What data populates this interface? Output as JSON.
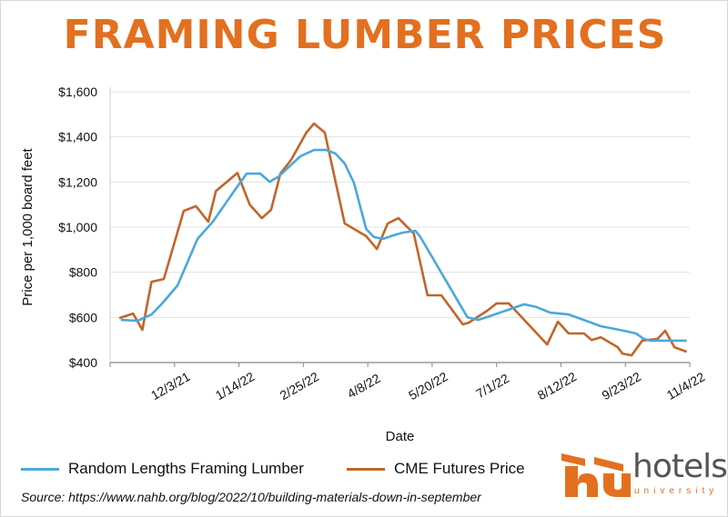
{
  "chart_data": {
    "type": "line",
    "title": "FRAMING LUMBER PRICES",
    "xlabel": "Date",
    "ylabel": "Price per 1,000 board feet",
    "x_unit": "days since 10/22/21",
    "xlim": [
      0,
      378
    ],
    "ylim": [
      400,
      1600
    ],
    "yticks": [
      400,
      600,
      800,
      1000,
      1200,
      1400,
      1600
    ],
    "ytick_labels": [
      "$400",
      "$600",
      "$800",
      "$1,000",
      "$1,200",
      "$1,400",
      "$1,600"
    ],
    "xticks": [
      42,
      84,
      126,
      168,
      210,
      252,
      294,
      336,
      378
    ],
    "xtick_labels": [
      "12/3/21",
      "1/14/22",
      "2/25/22",
      "4/8/22",
      "5/20/22",
      "7/1/22",
      "8/12/22",
      "9/23/22",
      "11/4/22"
    ],
    "grid": "horizontal",
    "legend": "bottom",
    "series": [
      {
        "name": "Random Lengths Framing Lumber",
        "color": "#4aa8dc",
        "x": [
          7,
          18,
          27,
          34,
          44,
          57,
          67,
          81,
          89,
          98,
          104,
          110,
          124,
          133,
          141,
          147,
          153,
          159,
          167,
          172,
          178,
          185,
          191,
          199,
          202,
          233,
          240,
          249,
          270,
          278,
          287,
          299,
          320,
          335,
          343,
          348,
          352,
          376
        ],
        "y": [
          589,
          585,
          613,
          662,
          742,
          948,
          1024,
          1161,
          1237,
          1237,
          1201,
          1225,
          1314,
          1342,
          1342,
          1326,
          1282,
          1197,
          992,
          956,
          948,
          964,
          976,
          984,
          960,
          601,
          589,
          609,
          658,
          646,
          621,
          613,
          561,
          541,
          529,
          505,
          497,
          497
        ]
      },
      {
        "name": "CME Futures Price",
        "color": "#c0662a",
        "x": [
          6,
          15,
          21,
          27,
          35,
          48,
          56,
          64,
          69,
          83,
          91,
          99,
          105,
          111,
          118,
          128,
          133,
          140,
          153,
          167,
          174,
          181,
          188,
          198,
          207,
          216,
          230,
          234,
          246,
          252,
          260,
          285,
          292,
          299,
          309,
          314,
          320,
          331,
          334,
          340,
          347,
          357,
          362,
          368,
          376
        ],
        "y": [
          597,
          617,
          545,
          758,
          770,
          1072,
          1093,
          1024,
          1160,
          1240,
          1100,
          1040,
          1077,
          1237,
          1298,
          1419,
          1459,
          1419,
          1016,
          960,
          903,
          1016,
          1040,
          972,
          698,
          698,
          569,
          577,
          630,
          662,
          662,
          480,
          581,
          529,
          529,
          500,
          512,
          468,
          440,
          432,
          497,
          505,
          541,
          468,
          448
        ]
      }
    ]
  },
  "source": "Source: https://www.nahb.org/blog/2022/10/building-materials-down-in-september",
  "logo": {
    "text": "hotels",
    "sub": "university"
  }
}
